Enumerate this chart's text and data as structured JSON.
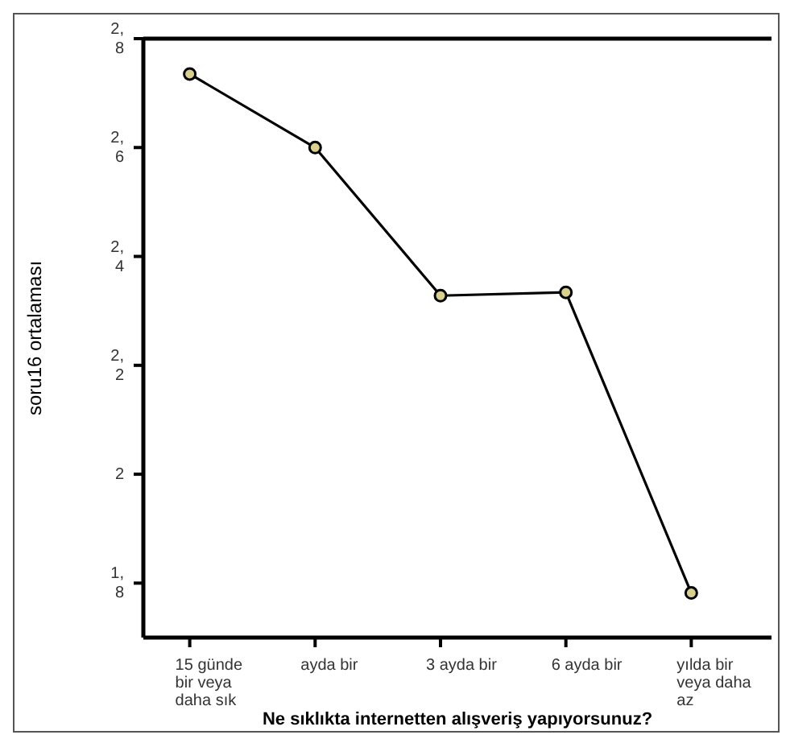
{
  "chart_data": {
    "type": "line",
    "xlabel": "Ne sıklıkta internetten alışveriş yapıyorsunuz?",
    "ylabel": "soru16  ortalaması",
    "categories": [
      "15 günde bir veya daha sık",
      "ayda bir",
      "3 ayda bir",
      "6 ayda bir",
      "yılda bir veya daha az"
    ],
    "series": [
      {
        "color": "#000000",
        "values": [
          2.735,
          2.6,
          2.328,
          2.334,
          1.782
        ]
      }
    ],
    "ylim": [
      1.7,
      2.8
    ],
    "yticks": [
      {
        "value": 1.8,
        "label": "1,8"
      },
      {
        "value": 2.0,
        "label": "2"
      },
      {
        "value": 2.2,
        "label": "2,2"
      },
      {
        "value": 2.4,
        "label": "2,4"
      },
      {
        "value": 2.6,
        "label": "2,6"
      },
      {
        "value": 2.8,
        "label": "2,8"
      }
    ],
    "marker": "circle",
    "line_style": "solid",
    "grid": false,
    "legend": false
  }
}
